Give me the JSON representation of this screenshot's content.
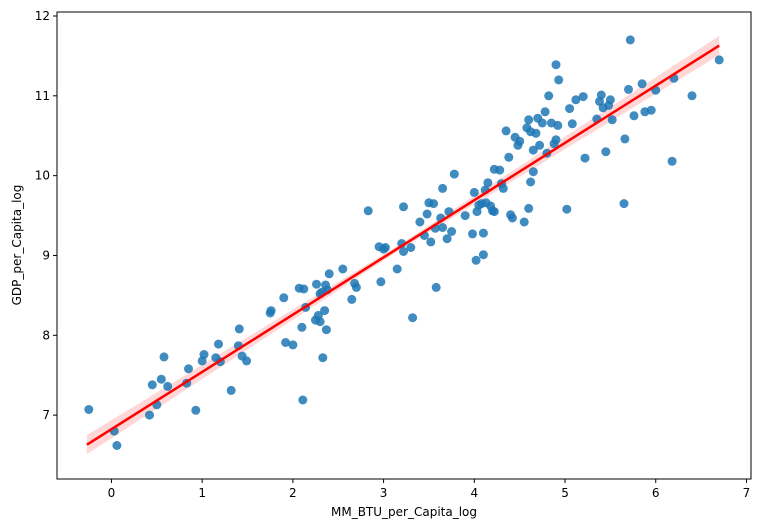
{
  "chart_data": {
    "type": "scatter",
    "title": "",
    "xlabel": "MM_BTU_per_Capita_log",
    "ylabel": "GDP_per_Capita_log",
    "xlim": [
      -0.6,
      7.05
    ],
    "ylim": [
      6.2,
      12.05
    ],
    "xticks": [
      0,
      1,
      2,
      3,
      4,
      5,
      6,
      7
    ],
    "yticks": [
      7,
      8,
      9,
      10,
      11,
      12
    ],
    "grid": false,
    "colors": {
      "points": "#1f77b4",
      "regression_line": "#ff0000",
      "confidence_band": "#ffb6b6"
    },
    "regression": {
      "x": [
        -0.27,
        6.7
      ],
      "y": [
        6.63,
        11.63
      ],
      "band_halfwidth": [
        0.12,
        0.035,
        0.12
      ]
    },
    "series": [
      {
        "name": "observations",
        "x": [
          -0.25,
          0.03,
          0.06,
          0.42,
          0.45,
          0.5,
          0.55,
          0.58,
          0.62,
          0.83,
          0.85,
          0.93,
          1.0,
          1.02,
          1.15,
          1.18,
          1.2,
          1.32,
          1.4,
          1.41,
          1.44,
          1.49,
          1.75,
          1.76,
          1.9,
          1.92,
          2.0,
          2.07,
          2.1,
          2.11,
          2.12,
          2.14,
          2.25,
          2.26,
          2.28,
          2.3,
          2.3,
          2.32,
          2.33,
          2.35,
          2.36,
          2.37,
          2.38,
          2.4,
          2.55,
          2.65,
          2.68,
          2.7,
          2.83,
          2.95,
          2.97,
          3.0,
          3.02,
          3.15,
          3.2,
          3.22,
          3.22,
          3.3,
          3.32,
          3.4,
          3.45,
          3.48,
          3.5,
          3.52,
          3.55,
          3.57,
          3.58,
          3.63,
          3.65,
          3.65,
          3.7,
          3.72,
          3.75,
          3.78,
          3.9,
          3.98,
          4.0,
          4.02,
          4.03,
          4.05,
          4.08,
          4.1,
          4.1,
          4.12,
          4.13,
          4.15,
          4.18,
          4.2,
          4.22,
          4.22,
          4.28,
          4.3,
          4.32,
          4.35,
          4.38,
          4.4,
          4.42,
          4.45,
          4.48,
          4.5,
          4.55,
          4.58,
          4.6,
          4.6,
          4.62,
          4.62,
          4.65,
          4.65,
          4.68,
          4.7,
          4.72,
          4.75,
          4.78,
          4.8,
          4.82,
          4.85,
          4.88,
          4.9,
          4.9,
          4.92,
          4.93,
          5.02,
          5.05,
          5.08,
          5.12,
          5.2,
          5.22,
          5.35,
          5.38,
          5.4,
          5.42,
          5.45,
          5.48,
          5.5,
          5.52,
          5.65,
          5.66,
          5.7,
          5.72,
          5.76,
          5.85,
          5.88,
          5.95,
          6.0,
          6.18,
          6.2,
          6.4,
          6.7
        ],
        "y": [
          7.07,
          6.8,
          6.62,
          7.0,
          7.38,
          7.13,
          7.45,
          7.73,
          7.36,
          7.4,
          7.58,
          7.06,
          7.68,
          7.76,
          7.72,
          7.89,
          7.67,
          7.31,
          7.87,
          8.08,
          7.74,
          7.68,
          8.28,
          8.31,
          8.47,
          7.91,
          7.88,
          8.59,
          8.1,
          7.19,
          8.58,
          8.35,
          8.19,
          8.64,
          8.25,
          8.52,
          8.17,
          8.54,
          7.72,
          8.31,
          8.63,
          8.07,
          8.57,
          8.77,
          8.83,
          8.45,
          8.65,
          8.6,
          9.56,
          9.11,
          8.67,
          9.08,
          9.1,
          8.83,
          9.15,
          9.61,
          9.05,
          9.1,
          8.22,
          9.42,
          9.25,
          9.52,
          9.66,
          9.17,
          9.65,
          9.34,
          8.6,
          9.47,
          9.35,
          9.84,
          9.21,
          9.55,
          9.3,
          10.02,
          9.5,
          9.27,
          9.79,
          8.94,
          9.55,
          9.63,
          9.65,
          9.28,
          9.01,
          9.82,
          9.66,
          9.91,
          9.62,
          9.56,
          10.08,
          9.55,
          10.07,
          9.9,
          9.84,
          10.56,
          10.23,
          9.51,
          9.47,
          10.48,
          10.38,
          10.43,
          9.42,
          10.6,
          9.59,
          10.7,
          10.55,
          9.92,
          10.32,
          10.05,
          10.53,
          10.72,
          10.38,
          10.66,
          10.8,
          10.28,
          11.0,
          10.66,
          10.4,
          10.45,
          11.39,
          10.63,
          11.2,
          9.58,
          10.84,
          10.65,
          10.95,
          10.99,
          10.22,
          10.71,
          10.93,
          11.01,
          10.85,
          10.3,
          10.88,
          10.95,
          10.7,
          9.65,
          10.46,
          11.08,
          11.7,
          10.75,
          11.15,
          10.8,
          10.82,
          11.07,
          10.18,
          11.22,
          11.0,
          11.45
        ]
      }
    ]
  }
}
